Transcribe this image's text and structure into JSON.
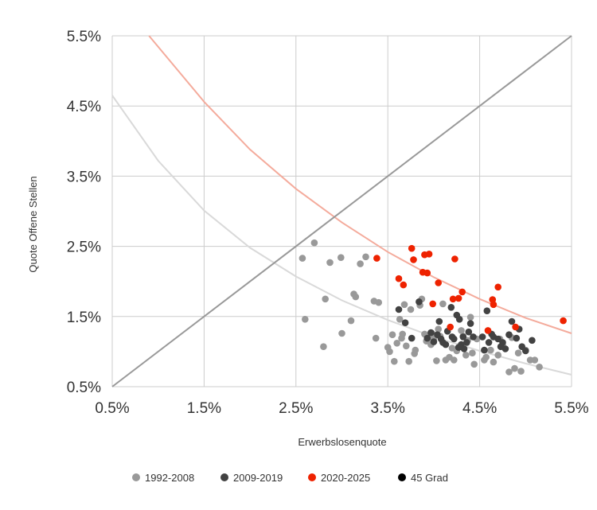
{
  "chart_data": {
    "type": "scatter",
    "title": "",
    "xlabel": "Erwerbslosenquote",
    "ylabel": "Quote Offene Stellen",
    "xlim": [
      0.5,
      5.5
    ],
    "ylim": [
      0.5,
      5.5
    ],
    "x_ticks": [
      0.5,
      1.5,
      2.5,
      3.5,
      4.5,
      5.5
    ],
    "y_ticks": [
      0.5,
      1.5,
      2.5,
      3.5,
      4.5,
      5.5
    ],
    "x_tick_labels": [
      "0.5%",
      "1.5%",
      "2.5%",
      "3.5%",
      "4.5%",
      "5.5%"
    ],
    "y_tick_labels": [
      "0.5%",
      "1.5%",
      "2.5%",
      "3.5%",
      "4.5%",
      "5.5%"
    ],
    "grid": true,
    "legend_position": "bottom",
    "series": [
      {
        "name": "1992-2008",
        "color": "#999999",
        "points": [
          [
            2.57,
            2.33
          ],
          [
            2.6,
            1.46
          ],
          [
            2.7,
            2.55
          ],
          [
            2.8,
            1.07
          ],
          [
            2.82,
            1.75
          ],
          [
            2.87,
            2.27
          ],
          [
            2.99,
            2.34
          ],
          [
            3.0,
            1.26
          ],
          [
            3.1,
            1.44
          ],
          [
            3.13,
            1.82
          ],
          [
            3.15,
            1.78
          ],
          [
            3.2,
            2.25
          ],
          [
            3.26,
            2.35
          ],
          [
            3.35,
            1.72
          ],
          [
            3.37,
            1.19
          ],
          [
            3.4,
            1.7
          ],
          [
            3.5,
            1.06
          ],
          [
            3.52,
            1.0
          ],
          [
            3.55,
            1.24
          ],
          [
            3.57,
            0.86
          ],
          [
            3.6,
            1.12
          ],
          [
            3.63,
            1.46
          ],
          [
            3.65,
            1.19
          ],
          [
            3.66,
            1.25
          ],
          [
            3.68,
            1.67
          ],
          [
            3.7,
            1.08
          ],
          [
            3.73,
            0.86
          ],
          [
            3.75,
            1.6
          ],
          [
            3.79,
            0.97
          ],
          [
            3.8,
            1.02
          ],
          [
            3.85,
            1.66
          ],
          [
            3.87,
            1.75
          ],
          [
            3.9,
            1.25
          ],
          [
            3.92,
            1.15
          ],
          [
            3.95,
            1.2
          ],
          [
            3.97,
            1.1
          ],
          [
            3.98,
            1.26
          ],
          [
            4.0,
            1.18
          ],
          [
            4.03,
            0.87
          ],
          [
            4.05,
            1.32
          ],
          [
            4.07,
            1.22
          ],
          [
            4.1,
            1.68
          ],
          [
            4.13,
            0.88
          ],
          [
            4.17,
            0.92
          ],
          [
            4.2,
            1.05
          ],
          [
            4.22,
            0.88
          ],
          [
            4.25,
            1.01
          ],
          [
            4.3,
            1.3
          ],
          [
            4.32,
            1.22
          ],
          [
            4.35,
            0.95
          ],
          [
            4.37,
            1.16
          ],
          [
            4.4,
            1.49
          ],
          [
            4.42,
            0.98
          ],
          [
            4.44,
            0.82
          ],
          [
            4.47,
            1.18
          ],
          [
            4.55,
            0.88
          ],
          [
            4.57,
            0.92
          ],
          [
            4.62,
            1.02
          ],
          [
            4.65,
            0.85
          ],
          [
            4.7,
            0.95
          ],
          [
            4.72,
            1.18
          ],
          [
            4.75,
            1.1
          ],
          [
            4.82,
            0.71
          ],
          [
            4.85,
            1.2
          ],
          [
            4.88,
            0.76
          ],
          [
            4.92,
            0.98
          ],
          [
            4.95,
            0.72
          ],
          [
            5.0,
            1.02
          ],
          [
            5.05,
            0.88
          ],
          [
            5.1,
            0.88
          ],
          [
            5.15,
            0.78
          ]
        ]
      },
      {
        "name": "2009-2019",
        "color": "#424242",
        "points": [
          [
            3.62,
            1.6
          ],
          [
            3.69,
            1.41
          ],
          [
            3.76,
            1.19
          ],
          [
            3.84,
            1.71
          ],
          [
            3.93,
            1.19
          ],
          [
            3.97,
            1.27
          ],
          [
            4.0,
            1.14
          ],
          [
            4.04,
            1.24
          ],
          [
            4.06,
            1.43
          ],
          [
            4.08,
            1.18
          ],
          [
            4.1,
            1.13
          ],
          [
            4.13,
            1.1
          ],
          [
            4.15,
            1.29
          ],
          [
            4.19,
            1.63
          ],
          [
            4.2,
            1.21
          ],
          [
            4.22,
            1.18
          ],
          [
            4.25,
            1.52
          ],
          [
            4.27,
            1.06
          ],
          [
            4.28,
            1.46
          ],
          [
            4.3,
            1.1
          ],
          [
            4.32,
            1.21
          ],
          [
            4.33,
            1.04
          ],
          [
            4.36,
            1.13
          ],
          [
            4.38,
            1.28
          ],
          [
            4.4,
            1.4
          ],
          [
            4.43,
            1.21
          ],
          [
            4.53,
            1.21
          ],
          [
            4.55,
            1.02
          ],
          [
            4.58,
            1.58
          ],
          [
            4.6,
            1.13
          ],
          [
            4.63,
            1.25
          ],
          [
            4.65,
            1.21
          ],
          [
            4.7,
            1.18
          ],
          [
            4.73,
            1.07
          ],
          [
            4.75,
            1.13
          ],
          [
            4.78,
            1.04
          ],
          [
            4.82,
            1.24
          ],
          [
            4.85,
            1.43
          ],
          [
            4.9,
            1.19
          ],
          [
            4.93,
            1.32
          ],
          [
            4.96,
            1.07
          ],
          [
            5.0,
            1.01
          ],
          [
            5.07,
            1.16
          ]
        ]
      },
      {
        "name": "2020-2025",
        "color": "#ee2200",
        "points": [
          [
            3.38,
            2.33
          ],
          [
            3.62,
            2.04
          ],
          [
            3.67,
            1.95
          ],
          [
            3.76,
            2.47
          ],
          [
            3.78,
            2.31
          ],
          [
            3.88,
            2.13
          ],
          [
            3.9,
            2.38
          ],
          [
            3.93,
            2.12
          ],
          [
            3.95,
            2.39
          ],
          [
            3.99,
            1.68
          ],
          [
            4.05,
            1.98
          ],
          [
            4.18,
            1.35
          ],
          [
            4.21,
            1.75
          ],
          [
            4.23,
            2.32
          ],
          [
            4.27,
            1.76
          ],
          [
            4.31,
            1.85
          ],
          [
            4.59,
            1.3
          ],
          [
            4.64,
            1.74
          ],
          [
            4.65,
            1.67
          ],
          [
            4.7,
            1.92
          ],
          [
            4.89,
            1.35
          ],
          [
            5.41,
            1.44
          ]
        ]
      }
    ],
    "reference_line": {
      "name": "45 Grad",
      "color": "#000000",
      "line_color": "#999999",
      "x": [
        0.5,
        5.5
      ],
      "y": [
        0.5,
        5.5
      ]
    },
    "trend_curves": [
      {
        "name": "trend 1992-2008",
        "color": "#d9d9d9",
        "x": [
          0.5,
          1.0,
          1.5,
          2.0,
          2.5,
          3.0,
          3.5,
          4.0,
          4.5,
          5.0,
          5.5
        ],
        "y": [
          4.65,
          3.72,
          3.01,
          2.48,
          2.07,
          1.73,
          1.45,
          1.21,
          1.01,
          0.83,
          0.67
        ]
      },
      {
        "name": "trend 2020-2025",
        "color": "#f4ab9c",
        "x": [
          0.9,
          1.5,
          2.0,
          2.5,
          3.0,
          3.5,
          4.0,
          4.5,
          5.0,
          5.5
        ],
        "y": [
          5.5,
          4.56,
          3.88,
          3.32,
          2.84,
          2.42,
          2.06,
          1.75,
          1.48,
          1.26
        ]
      }
    ]
  }
}
